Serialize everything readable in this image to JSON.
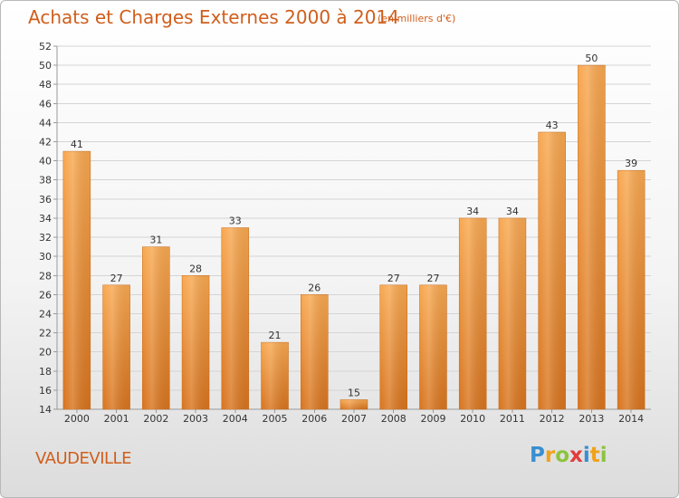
{
  "title": "Achats et Charges Externes 2000 à 2014",
  "subtitle": "(en milliers d'€)",
  "commune": "VAUDEVILLE",
  "logo": {
    "text": "Proxiti",
    "letters": [
      {
        "ch": "P",
        "color": "#3a8fd0"
      },
      {
        "ch": "r",
        "color": "#f0a21a"
      },
      {
        "ch": "o",
        "color": "#8cc43c"
      },
      {
        "ch": "x",
        "color": "#e23b3b"
      },
      {
        "ch": "i",
        "color": "#3a8fd0"
      },
      {
        "ch": "t",
        "color": "#f0a21a"
      },
      {
        "ch": "i",
        "color": "#8cc43c"
      }
    ]
  },
  "colors": {
    "text_accent": "#d05e1c",
    "bar_light": "#f7a44a",
    "bar_dark": "#d8751f",
    "grid": "#d0d0d0",
    "axis": "#999999"
  },
  "chart_data": {
    "type": "bar",
    "title": "Achats et Charges Externes 2000 à 2014",
    "subtitle": "(en milliers d'€)",
    "categories": [
      "2000",
      "2001",
      "2002",
      "2003",
      "2004",
      "2005",
      "2006",
      "2007",
      "2008",
      "2009",
      "2010",
      "2011",
      "2012",
      "2013",
      "2014"
    ],
    "values": [
      41,
      27,
      31,
      28,
      33,
      21,
      26,
      15,
      27,
      27,
      34,
      34,
      43,
      50,
      39
    ],
    "ylim": [
      14,
      52
    ],
    "yticks": [
      14,
      16,
      18,
      20,
      22,
      24,
      26,
      28,
      30,
      32,
      34,
      36,
      38,
      40,
      42,
      44,
      46,
      48,
      50,
      52
    ],
    "grid": true,
    "legend": "none"
  }
}
